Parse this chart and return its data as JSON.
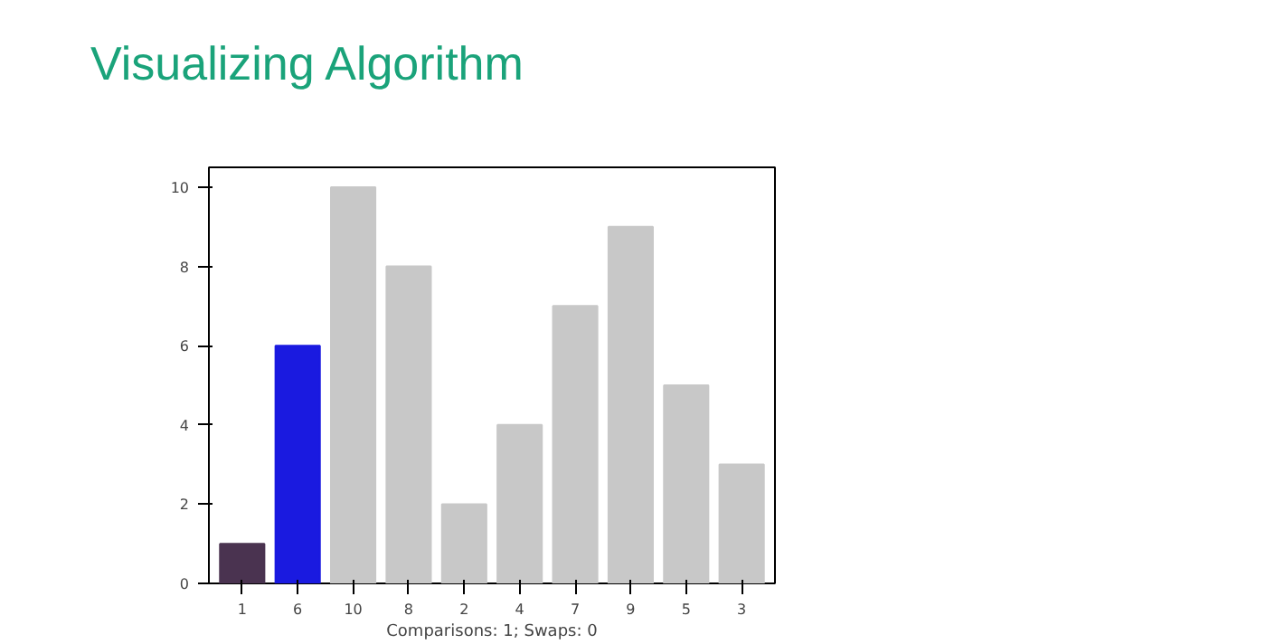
{
  "chart_data": {
    "type": "bar",
    "title": "Visualizing Algorithm",
    "xlabel": "Comparisons: 1; Swaps: 0",
    "categories": [
      "1",
      "6",
      "10",
      "8",
      "2",
      "4",
      "7",
      "9",
      "5",
      "3"
    ],
    "values": [
      1,
      6,
      10,
      8,
      2,
      4,
      7,
      9,
      5,
      3
    ],
    "colors": [
      "#4a3350",
      "#1a1ae0",
      "#c8c8c8",
      "#c8c8c8",
      "#c8c8c8",
      "#c8c8c8",
      "#c8c8c8",
      "#c8c8c8",
      "#c8c8c8",
      "#c8c8c8"
    ],
    "ylim": [
      0,
      10.5
    ],
    "yticks": [
      0,
      2,
      4,
      6,
      8,
      10
    ],
    "grid": false
  }
}
